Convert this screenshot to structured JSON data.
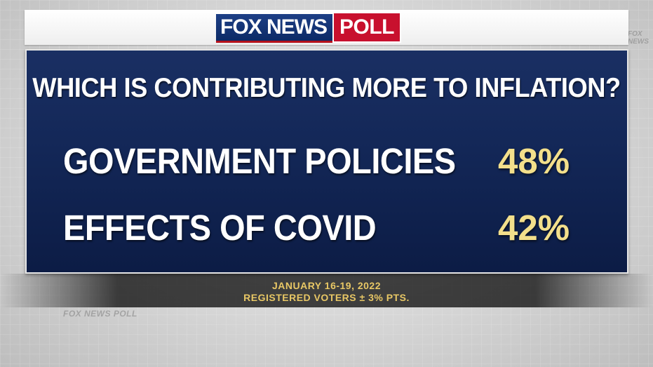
{
  "brand": {
    "logo_fox": "FOX NEWS",
    "logo_poll": "POLL",
    "watermark": "FOX NEWS POLL",
    "colors": {
      "navy": "#132757",
      "red": "#c8102e",
      "value_yellow": "#f3df8b",
      "footer_gold": "#e8c765"
    }
  },
  "chart_data": {
    "type": "table",
    "title": "WHICH IS CONTRIBUTING MORE TO INFLATION?",
    "categories": [
      "GOVERNMENT POLICIES",
      "EFFECTS OF COVID"
    ],
    "values": [
      48,
      42
    ],
    "value_labels": [
      "48%",
      "42%"
    ],
    "unit": "%"
  },
  "footer": {
    "date": "JANUARY 16-19, 2022",
    "sample": "REGISTERED VOTERS ± 3% PTS."
  }
}
